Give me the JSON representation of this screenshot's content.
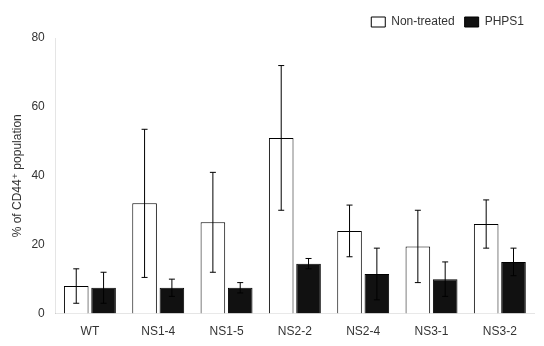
{
  "chart_data": {
    "type": "bar",
    "categories": [
      "WT",
      "NS1-4",
      "NS1-5",
      "NS2-2",
      "NS2-4",
      "NS3-1",
      "NS3-2"
    ],
    "series": [
      {
        "name": "Non-treated",
        "color": "#ffffff",
        "values": [
          8.0,
          32.0,
          26.5,
          51.0,
          24.0,
          19.5,
          26.0
        ],
        "errors": [
          5.0,
          21.5,
          14.5,
          21.0,
          7.5,
          10.5,
          7.0
        ]
      },
      {
        "name": "PHPS1",
        "color": "#111111",
        "values": [
          7.5,
          7.5,
          7.5,
          14.5,
          11.5,
          10.0,
          15.0
        ],
        "errors": [
          4.5,
          2.5,
          1.5,
          1.5,
          7.5,
          5.0,
          4.0
        ]
      }
    ],
    "ylabel": "% of CD44⁺ population",
    "ylim": [
      0,
      80
    ],
    "yticks": [
      0,
      20,
      40,
      60,
      80
    ],
    "legend": "upper right",
    "grid": false
  }
}
